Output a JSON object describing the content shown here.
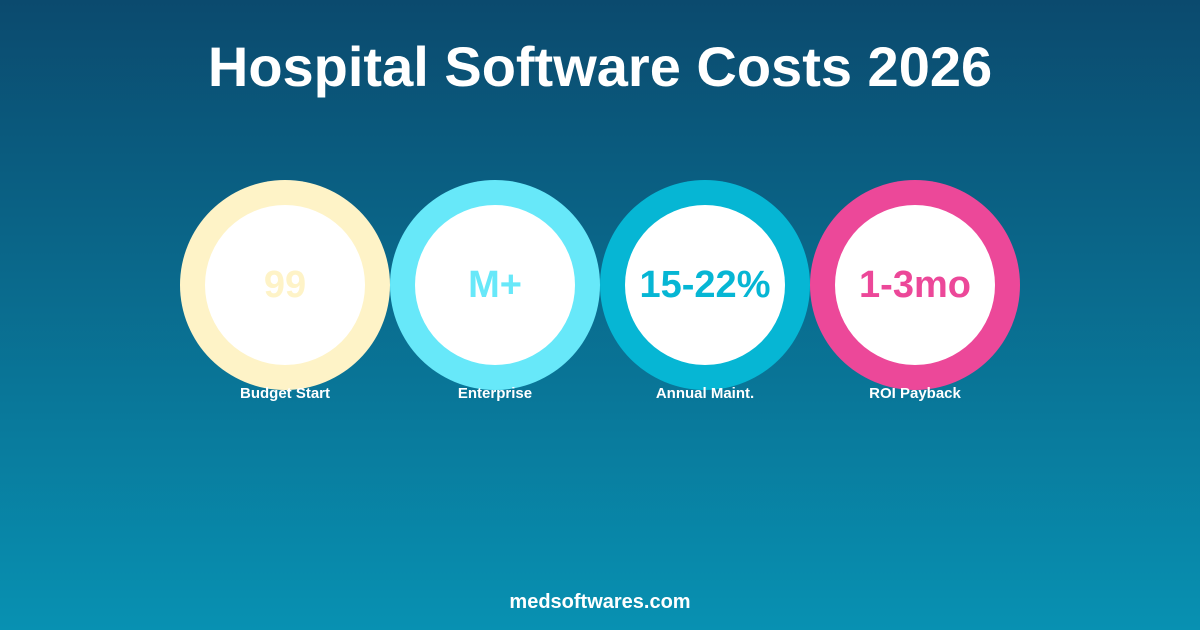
{
  "title": "Hospital Software Costs 2026",
  "stats": [
    {
      "value": "99",
      "label": "Budget Start",
      "color": "#fef3c7"
    },
    {
      "value": "M+",
      "label": "Enterprise",
      "color": "#67e8f9"
    },
    {
      "value": "15-22%",
      "label": "Annual Maint.",
      "color": "#06b6d4"
    },
    {
      "value": "1-3mo",
      "label": "ROI Payback",
      "color": "#ec4899"
    }
  ],
  "footer": "medsoftwares.com"
}
